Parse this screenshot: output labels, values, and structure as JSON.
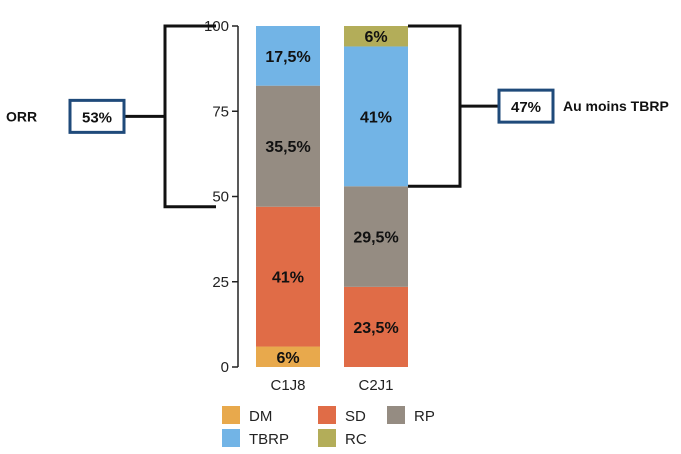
{
  "chart_data": {
    "type": "bar",
    "stacked": true,
    "categories": [
      "C1J8",
      "C2J1"
    ],
    "ylim": [
      0,
      100
    ],
    "yticks": [
      0,
      25,
      50,
      75,
      100
    ],
    "series": [
      {
        "name": "DM",
        "color": "#e8a94c",
        "values": [
          6,
          0
        ],
        "labels": [
          "6%",
          ""
        ]
      },
      {
        "name": "SD",
        "color": "#e06c47",
        "values": [
          41,
          23.5
        ],
        "labels": [
          "41%",
          "23,5%"
        ]
      },
      {
        "name": "RP",
        "color": "#958c82",
        "values": [
          35.5,
          29.5
        ],
        "labels": [
          "35,5%",
          "29,5%"
        ]
      },
      {
        "name": "TBRP",
        "color": "#72b4e6",
        "values": [
          17.5,
          41
        ],
        "labels": [
          "17,5%",
          "41%"
        ]
      },
      {
        "name": "RC",
        "color": "#b3ad59",
        "values": [
          0,
          6
        ],
        "labels": [
          "",
          "6%"
        ]
      }
    ],
    "legend_order": [
      "DM",
      "SD",
      "RP",
      "TBRP",
      "RC"
    ],
    "legend_placement": "bottom",
    "annotations": [
      {
        "label": "ORR",
        "value": "53%",
        "side": "left",
        "from": 47,
        "to": 100
      },
      {
        "label": "Au moins TBRP",
        "value": "47%",
        "side": "right",
        "from": 53,
        "to": 100
      }
    ],
    "colors": {
      "box_border": "#1f4a7a",
      "bracket": "#111111"
    }
  }
}
